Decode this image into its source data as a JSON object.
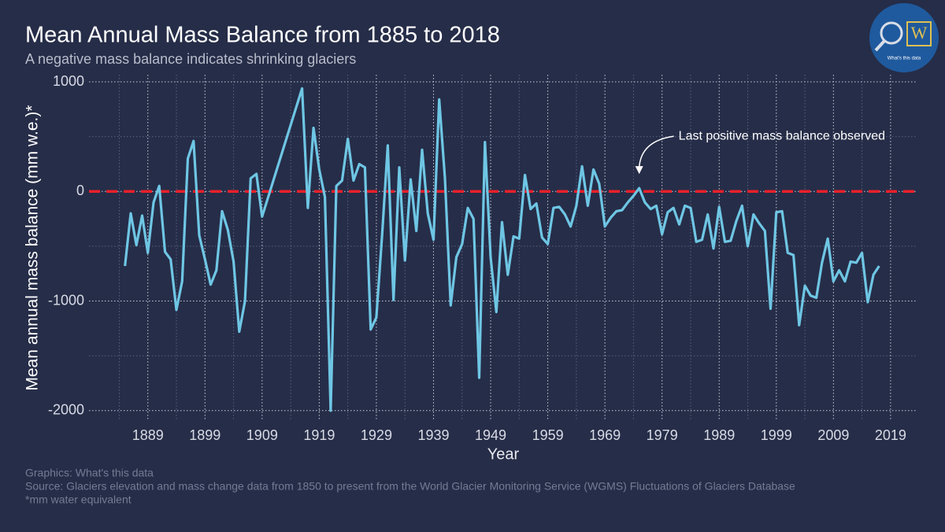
{
  "chart_data": {
    "type": "line",
    "title": "Mean Annual Mass Balance from 1885 to 2018",
    "subtitle": "A negative mass balance indicates shrinking glaciers",
    "x_label": "Year",
    "y_label": "Mean annual mass balance (mm w.e.)*",
    "annotation": "Last positive mass balance observed",
    "footer": [
      "Graphics: What's this data",
      "Source: Glaciers elevation and mass change data from 1850 to present from the World Glacier Monitoring Service (WGMS) Fluctuations of Glaciers Database",
      "*mm water equivalent"
    ],
    "logo_text": "What's this data",
    "color": "#6ec6e4",
    "reference_line": {
      "value": 0,
      "color": "#e8202a"
    },
    "grid": true,
    "xlim": [
      1878.7,
      2023.7
    ],
    "ylim": [
      -2095,
      1065
    ],
    "xticks": [
      1889,
      1899,
      1909,
      1919,
      1929,
      1939,
      1949,
      1959,
      1969,
      1979,
      1989,
      1999,
      2009,
      2019
    ],
    "yticks": [
      -2000,
      -1000,
      0,
      1000
    ],
    "x": [
      1885,
      1886,
      1887,
      1888,
      1889,
      1890,
      1891,
      1892,
      1893,
      1894,
      1895,
      1896,
      1897,
      1898,
      1899,
      1900,
      1901,
      1902,
      1903,
      1904,
      1905,
      1906,
      1907,
      1908,
      1909,
      1916,
      1917,
      1918,
      1919,
      1920,
      1921,
      1922,
      1923,
      1924,
      1925,
      1926,
      1927,
      1928,
      1929,
      1930,
      1931,
      1932,
      1933,
      1934,
      1935,
      1936,
      1937,
      1938,
      1939,
      1940,
      1941,
      1942,
      1943,
      1944,
      1945,
      1946,
      1947,
      1948,
      1949,
      1950,
      1951,
      1952,
      1953,
      1954,
      1955,
      1956,
      1957,
      1958,
      1959,
      1960,
      1961,
      1962,
      1963,
      1964,
      1965,
      1966,
      1967,
      1968,
      1969,
      1970,
      1971,
      1972,
      1973,
      1974,
      1975,
      1976,
      1977,
      1978,
      1979,
      1980,
      1981,
      1982,
      1983,
      1984,
      1985,
      1986,
      1987,
      1988,
      1989,
      1990,
      1991,
      1992,
      1993,
      1994,
      1995,
      1996,
      1997,
      1998,
      1999,
      2000,
      2001,
      2002,
      2003,
      2004,
      2005,
      2006,
      2007,
      2008,
      2009,
      2010,
      2011,
      2012,
      2013,
      2014,
      2015,
      2016,
      2017
    ],
    "values": [
      -680,
      -200,
      -490,
      -220,
      -560,
      -100,
      50,
      -550,
      -620,
      -1080,
      -820,
      300,
      460,
      -400,
      -620,
      -850,
      -720,
      -180,
      -350,
      -640,
      -1280,
      -1000,
      120,
      160,
      -230,
      940,
      -150,
      580,
      200,
      -50,
      -2000,
      50,
      100,
      480,
      100,
      250,
      220,
      -1260,
      -1150,
      -400,
      420,
      -990,
      220,
      -630,
      110,
      -360,
      380,
      -200,
      -440,
      840,
      120,
      -1040,
      -600,
      -480,
      -150,
      -250,
      -1700,
      450,
      -600,
      -1100,
      -280,
      -760,
      -410,
      -430,
      150,
      -160,
      -110,
      -420,
      -480,
      -150,
      -140,
      -210,
      -320,
      -130,
      230,
      -130,
      200,
      70,
      -320,
      -240,
      -180,
      -170,
      -100,
      -40,
      30,
      -100,
      -160,
      -130,
      -390,
      -190,
      -150,
      -300,
      -130,
      -150,
      -460,
      -440,
      -210,
      -520,
      -140,
      -460,
      -450,
      -270,
      -130,
      -500,
      -210,
      -290,
      -360,
      -1070,
      -190,
      -180,
      -560,
      -580,
      -1220,
      -860,
      -950,
      -970,
      -650,
      -430,
      -820,
      -720,
      -820,
      -640,
      -650,
      -560,
      -1010,
      -760,
      -680
    ]
  }
}
